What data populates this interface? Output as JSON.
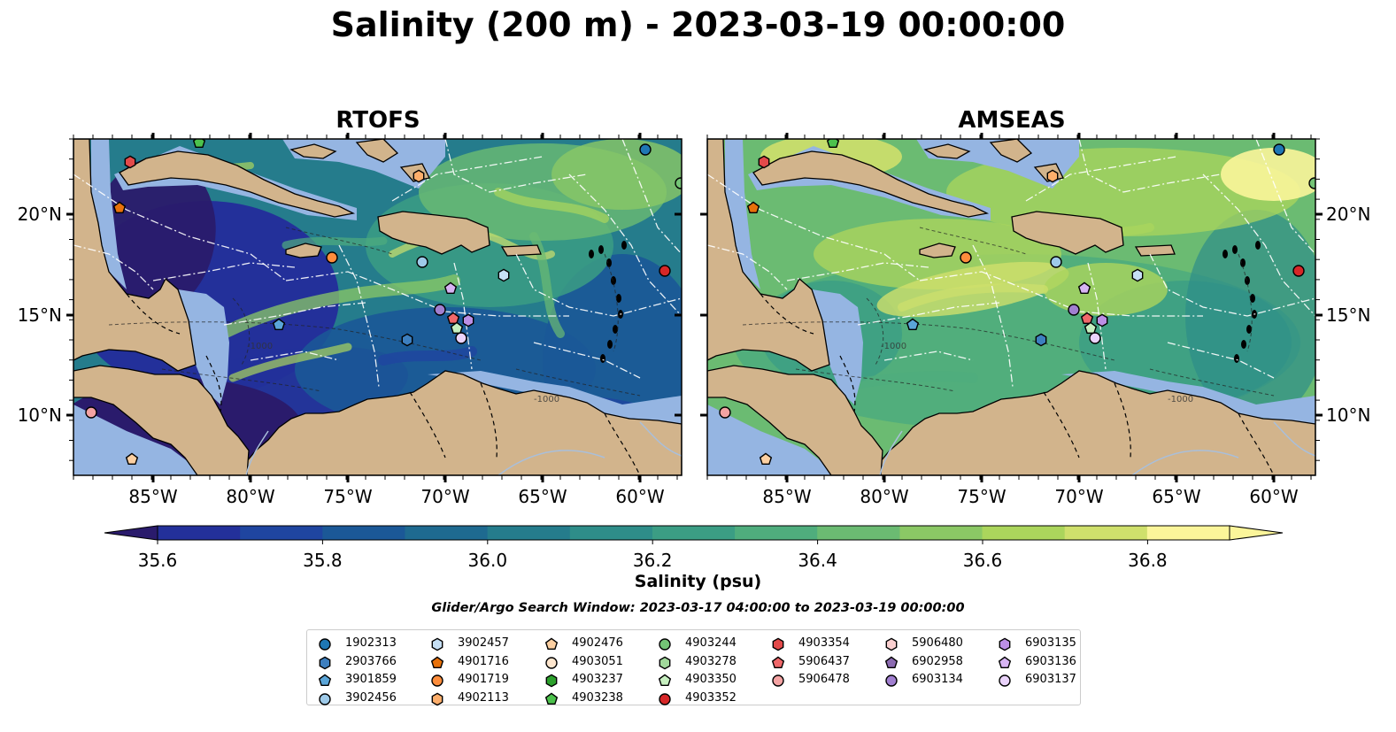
{
  "title": "Salinity (200 m) - 2023-03-19 00:00:00",
  "panels": [
    {
      "id": "rtofs",
      "title": "RTOFS",
      "palette": "low"
    },
    {
      "id": "amseas",
      "title": "AMSEAS",
      "palette": "high"
    }
  ],
  "map": {
    "lon_ticks": [
      "85°W",
      "80°W",
      "75°W",
      "70°W",
      "65°W",
      "60°W"
    ],
    "lat_ticks": [
      "20°N",
      "15°N",
      "10°N"
    ],
    "contour_label": "-1000",
    "colors": {
      "land": "#d2b48c",
      "shelf": "#95b5e2",
      "coast": "#000000",
      "eez": "#ffffff"
    }
  },
  "colorbar": {
    "label": "Salinity (psu)",
    "ticks": [
      "35.6",
      "35.8",
      "36.0",
      "36.2",
      "36.4",
      "36.6",
      "36.8"
    ],
    "min": 35.55,
    "max": 36.95,
    "step": 0.1,
    "colors": [
      "#2a1b6c",
      "#23309a",
      "#1f45a0",
      "#1b5897",
      "#1e6a90",
      "#257c8c",
      "#2e8d89",
      "#3b9d84",
      "#4fad7d",
      "#6bbb72",
      "#8bc865",
      "#abd55c",
      "#cfe06c",
      "#fbf59a"
    ]
  },
  "search_window": "Glider/Argo Search Window: 2023-03-17 04:00:00 to 2023-03-19 00:00:00",
  "legend": {
    "columns": [
      [
        {
          "id": "1902313",
          "shape": "circle",
          "color": "#1f77b4"
        },
        {
          "id": "2903766",
          "shape": "hexagon",
          "color": "#3d7fbf"
        },
        {
          "id": "3901859",
          "shape": "pentagon",
          "color": "#5aa5d8"
        },
        {
          "id": "3902456",
          "shape": "circle",
          "color": "#9ecae9"
        }
      ],
      [
        {
          "id": "3902457",
          "shape": "hexagon",
          "color": "#c6e0f5"
        },
        {
          "id": "4901716",
          "shape": "pentagon",
          "color": "#e8710a"
        },
        {
          "id": "4901719",
          "shape": "circle",
          "color": "#fd8d3c"
        },
        {
          "id": "4902113",
          "shape": "hexagon",
          "color": "#fdae6b"
        }
      ],
      [
        {
          "id": "4902476",
          "shape": "pentagon",
          "color": "#fdd0a2"
        },
        {
          "id": "4903051",
          "shape": "circle",
          "color": "#fee6ce"
        },
        {
          "id": "4903237",
          "shape": "hexagon",
          "color": "#2ca02c"
        },
        {
          "id": "4903238",
          "shape": "pentagon",
          "color": "#4cc24c"
        }
      ],
      [
        {
          "id": "4903244",
          "shape": "circle",
          "color": "#74c476"
        },
        {
          "id": "4903278",
          "shape": "hexagon",
          "color": "#a1d99b"
        },
        {
          "id": "4903350",
          "shape": "pentagon",
          "color": "#c7f0c0"
        },
        {
          "id": "4903352",
          "shape": "circle",
          "color": "#d62728"
        }
      ],
      [
        {
          "id": "4903354",
          "shape": "hexagon",
          "color": "#e34a4a"
        },
        {
          "id": "5906437",
          "shape": "pentagon",
          "color": "#f0686a"
        },
        {
          "id": "5906478",
          "shape": "circle",
          "color": "#f4a3a3"
        }
      ],
      [
        {
          "id": "5906480",
          "shape": "hexagon",
          "color": "#fbd0d0"
        },
        {
          "id": "6902958",
          "shape": "pentagon",
          "color": "#8c6bb1"
        },
        {
          "id": "6903134",
          "shape": "circle",
          "color": "#a17fd0"
        }
      ],
      [
        {
          "id": "6903135",
          "shape": "hexagon",
          "color": "#bc8fe6"
        },
        {
          "id": "6903136",
          "shape": "pentagon",
          "color": "#d7b4f3"
        },
        {
          "id": "6903137",
          "shape": "circle",
          "color": "#ead3fb"
        }
      ]
    ]
  }
}
